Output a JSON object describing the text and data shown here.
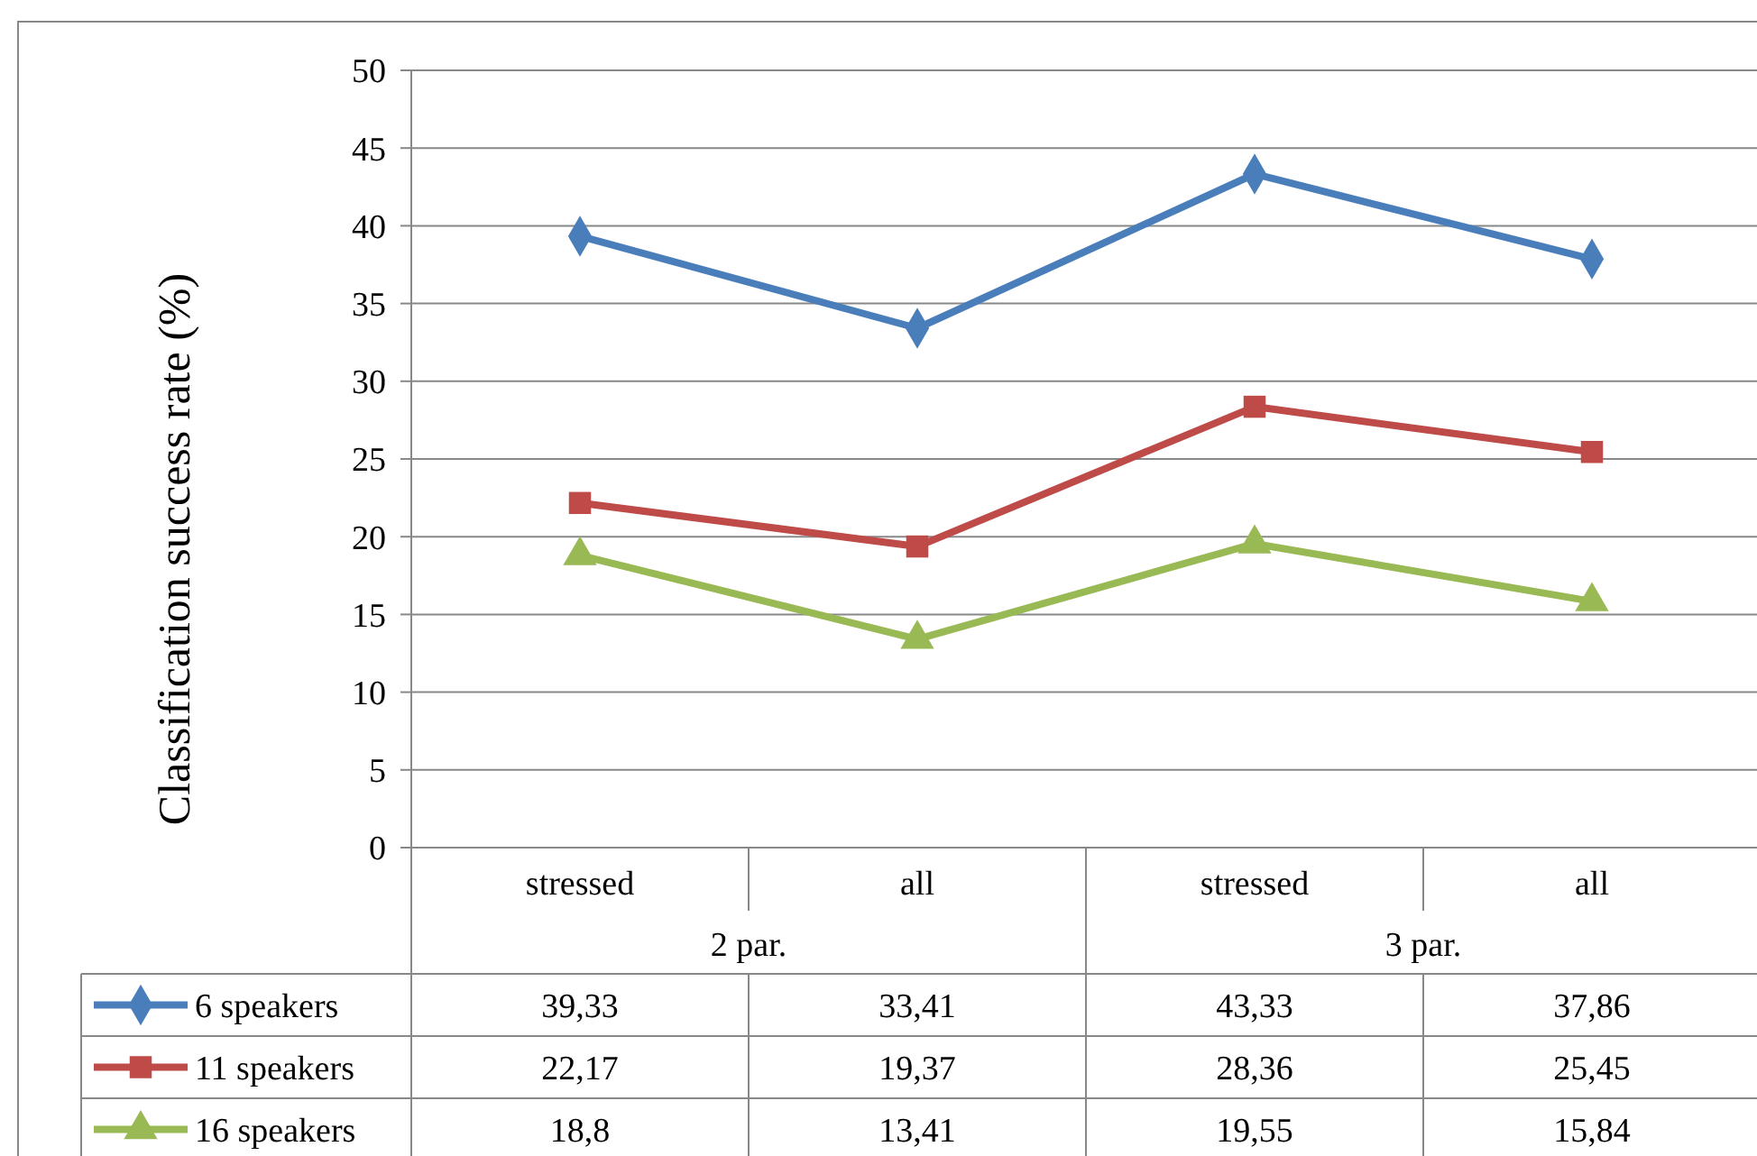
{
  "chart_data": {
    "type": "line",
    "ylabel": "Classification success rate (%)",
    "categories": [
      "stressed",
      "all",
      "stressed",
      "all"
    ],
    "annotations": [
      "2 par.",
      "3 par."
    ],
    "ylim": [
      0,
      50
    ],
    "yticks": [
      0,
      5,
      10,
      15,
      20,
      25,
      30,
      35,
      40,
      45,
      50
    ],
    "grid": "y",
    "legend": "bottom",
    "series": [
      {
        "name": "6 speakers",
        "color": "#4a7ebb",
        "marker": "diamond",
        "values": [
          39.33,
          33.41,
          43.33,
          37.86
        ],
        "value_labels": [
          "39,33",
          "33,41",
          "43,33",
          "37,86"
        ]
      },
      {
        "name": "11 speakers",
        "color": "#be4b48",
        "marker": "square",
        "values": [
          22.17,
          19.37,
          28.36,
          25.45
        ],
        "value_labels": [
          "22,17",
          "19,37",
          "28,36",
          "25,45"
        ]
      },
      {
        "name": "16 speakers",
        "color": "#98b954",
        "marker": "triangle",
        "values": [
          18.8,
          13.41,
          19.55,
          15.84
        ],
        "value_labels": [
          "18,8",
          "13,41",
          "19,55",
          "15,84"
        ]
      }
    ]
  }
}
